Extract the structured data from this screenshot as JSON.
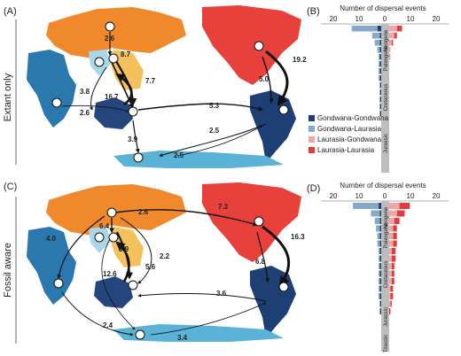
{
  "panels": {
    "A": "(A)",
    "B": "(B)",
    "C": "(C)",
    "D": "(D)"
  },
  "side_labels": {
    "top": "Extant only",
    "bottom": "Fossil aware"
  },
  "region_colors": {
    "laurasia_asia": "#f0892b",
    "north_america": "#e8413c",
    "southeast_asia": "#f5c15c",
    "africa_india": "#2a78ad",
    "south_america": "#1d3f73",
    "australia": "#25457d",
    "antarctica": "#5ab3d6",
    "india_light": "#a9d6e8"
  },
  "map_top": {
    "arrow_labels": [
      "2.6",
      "8.7",
      "7.7",
      "3.8",
      "16.7",
      "19.2",
      "5.0",
      "5.3",
      "2.5",
      "2.6",
      "3.9",
      "2.5"
    ]
  },
  "map_bottom": {
    "arrow_labels": [
      "2.6",
      "7.3",
      "6.4",
      "8.9",
      "2.2",
      "4.0",
      "5.6",
      "12.6",
      "16.3",
      "6.8",
      "3.6",
      "2.4",
      "3.4"
    ]
  },
  "bar_charts": {
    "axis_title": "Number of dispersal events",
    "ticks": [
      "20",
      "10",
      "0",
      "10",
      "20"
    ],
    "periods": [
      "Neogene",
      "Paleogene",
      "Cretaceous",
      "Jurassic",
      "Triassic"
    ],
    "legend": [
      {
        "label": "Gondwana-Gondwana",
        "color": "#1d3f73"
      },
      {
        "label": "Gondwana-Laurasia",
        "color": "#86a8c9"
      },
      {
        "label": "Laurasia-Gondwana",
        "color": "#f3a5a5"
      },
      {
        "label": "Laurasia-Laurasia",
        "color": "#e03c3c"
      }
    ]
  },
  "chart_data": [
    {
      "type": "bar",
      "panel": "B",
      "orientation": "horizontal",
      "xlabel": "Number of dispersal events",
      "xlim": [
        -25,
        25
      ],
      "bins_top_to_bottom": 19,
      "series": [
        {
          "name": "Gondwana-Gondwana",
          "side": "left",
          "values": [
            3,
            1,
            1,
            1,
            1,
            1,
            1,
            1,
            1,
            1,
            1,
            1,
            1,
            0,
            0,
            0,
            0,
            0,
            0
          ]
        },
        {
          "name": "Gondwana-Laurasia",
          "side": "left",
          "values": [
            20,
            6,
            4,
            2,
            1,
            1,
            1,
            1,
            0,
            0,
            0,
            0,
            0,
            0,
            0,
            0,
            0,
            0,
            0
          ]
        },
        {
          "name": "Laurasia-Gondwana",
          "side": "right",
          "values": [
            6,
            4,
            2,
            1,
            1,
            0,
            0,
            0,
            0,
            0,
            0,
            0,
            0,
            0,
            0,
            0,
            0,
            0,
            0
          ]
        },
        {
          "name": "Laurasia-Laurasia",
          "side": "right",
          "values": [
            4,
            2,
            1,
            0,
            0,
            0,
            0,
            0,
            0,
            0,
            0,
            0,
            0,
            0,
            0,
            0,
            0,
            0,
            0
          ]
        }
      ]
    },
    {
      "type": "bar",
      "panel": "D",
      "orientation": "horizontal",
      "xlabel": "Number of dispersal events",
      "xlim": [
        -25,
        25
      ],
      "bins_top_to_bottom": 19,
      "series": [
        {
          "name": "Gondwana-Gondwana",
          "side": "left",
          "values": [
            2,
            1,
            1,
            1,
            1,
            1,
            1,
            1,
            1,
            1,
            1,
            1,
            1,
            1,
            1,
            0,
            0,
            0,
            0
          ]
        },
        {
          "name": "Gondwana-Laurasia",
          "side": "left",
          "values": [
            20,
            7,
            4,
            3,
            2,
            2,
            1,
            1,
            1,
            1,
            1,
            1,
            1,
            0,
            0,
            0,
            0,
            0,
            0
          ]
        },
        {
          "name": "Laurasia-Gondwana",
          "side": "right",
          "values": [
            8,
            6,
            4,
            3,
            3,
            3,
            2,
            2,
            2,
            2,
            2,
            1,
            1,
            1,
            0,
            0,
            0,
            0,
            0
          ]
        },
        {
          "name": "Laurasia-Laurasia",
          "side": "right",
          "values": [
            8,
            6,
            4,
            3,
            3,
            3,
            3,
            3,
            2,
            2,
            2,
            2,
            2,
            1,
            1,
            0,
            0,
            0,
            0
          ]
        }
      ]
    }
  ]
}
